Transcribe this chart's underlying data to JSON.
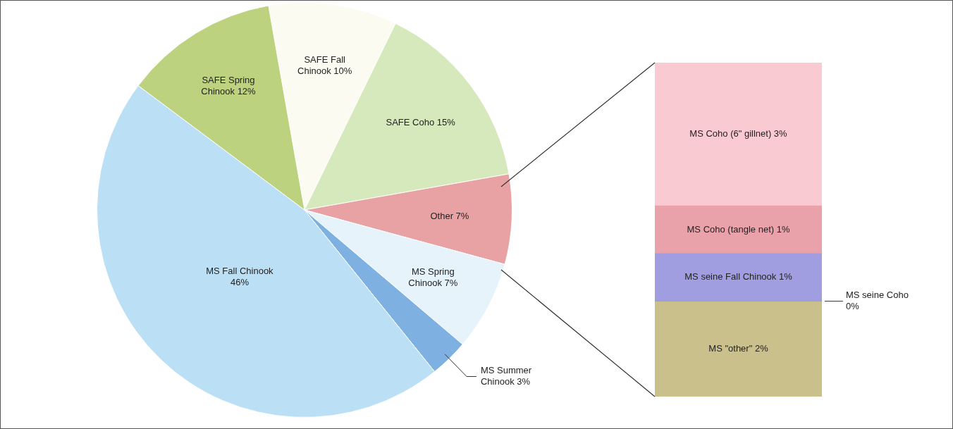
{
  "chart_data": [
    {
      "type": "pie",
      "categories": [
        "SAFE Fall Chinook",
        "SAFE Coho",
        "Other",
        "MS Spring Chinook",
        "MS Summer Chinook",
        "MS Fall Chinook",
        "SAFE Spring Chinook"
      ],
      "values": [
        10,
        15,
        7,
        7,
        3,
        46,
        12
      ],
      "colors": [
        "#fbfbf2",
        "#d6e9bc",
        "#e8a2a4",
        "#e6f3fb",
        "#7eb1e2",
        "#bbe0f6",
        "#bcd27f"
      ],
      "value_labels": [
        "10%",
        "15%",
        "7%",
        "7%",
        "3%",
        "46%",
        "12%"
      ],
      "legend": false
    },
    {
      "type": "bar",
      "stacked": true,
      "categories": [
        null
      ],
      "legend": false,
      "series": [
        {
          "name": "MS \"other\"",
          "color": "#c9c08c",
          "values": [
            2
          ],
          "value_labels": [
            "2%"
          ]
        },
        {
          "name": "MS seine Coho",
          "color": "#3b3282",
          "values": [
            0
          ],
          "value_labels": [
            "0%"
          ]
        },
        {
          "name": "MS seine Fall Chinook",
          "color": "#a09ee0",
          "values": [
            1
          ],
          "value_labels": [
            "1%"
          ]
        },
        {
          "name": "MS Coho (tangle net)",
          "color": "#eaa2aa",
          "values": [
            1
          ],
          "value_labels": [
            "1%"
          ]
        },
        {
          "name": "MS Coho (6\" gillnet)",
          "color": "#f9cad2",
          "values": [
            3
          ],
          "value_labels": [
            "3%"
          ]
        }
      ]
    }
  ]
}
